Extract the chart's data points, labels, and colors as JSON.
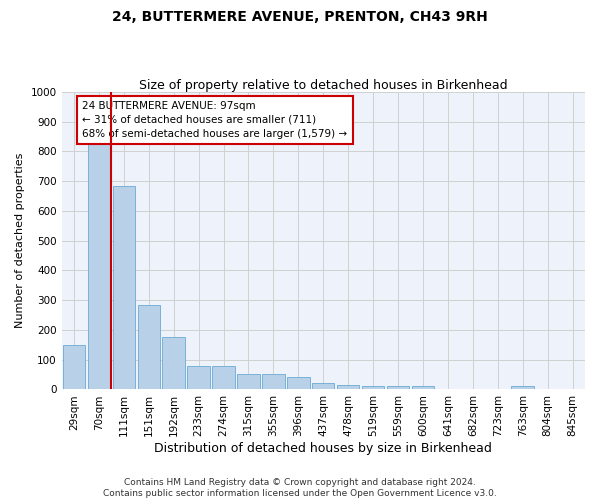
{
  "title": "24, BUTTERMERE AVENUE, PRENTON, CH43 9RH",
  "subtitle": "Size of property relative to detached houses in Birkenhead",
  "xlabel": "Distribution of detached houses by size in Birkenhead",
  "ylabel": "Number of detached properties",
  "categories": [
    "29sqm",
    "70sqm",
    "111sqm",
    "151sqm",
    "192sqm",
    "233sqm",
    "274sqm",
    "315sqm",
    "355sqm",
    "396sqm",
    "437sqm",
    "478sqm",
    "519sqm",
    "559sqm",
    "600sqm",
    "641sqm",
    "682sqm",
    "723sqm",
    "763sqm",
    "804sqm",
    "845sqm"
  ],
  "values": [
    150,
    825,
    685,
    283,
    175,
    80,
    78,
    52,
    52,
    42,
    22,
    14,
    13,
    10,
    10,
    0,
    0,
    0,
    12,
    0,
    0
  ],
  "bar_color": "#b8d0e8",
  "bar_edge_color": "#6aaad4",
  "vline_x_idx": 1.5,
  "annotation_line1": "24 BUTTERMERE AVENUE: 97sqm",
  "annotation_line2": "← 31% of detached houses are smaller (711)",
  "annotation_line3": "68% of semi-detached houses are larger (1,579) →",
  "annotation_box_color": "#ffffff",
  "annotation_box_edge_color": "#cc0000",
  "vline_color": "#cc0000",
  "ylim": [
    0,
    1000
  ],
  "yticks": [
    0,
    100,
    200,
    300,
    400,
    500,
    600,
    700,
    800,
    900,
    1000
  ],
  "grid_color": "#d0d0d0",
  "bg_color": "#eef2fa",
  "footer_line1": "Contains HM Land Registry data © Crown copyright and database right 2024.",
  "footer_line2": "Contains public sector information licensed under the Open Government Licence v3.0.",
  "title_fontsize": 10,
  "subtitle_fontsize": 9,
  "xlabel_fontsize": 9,
  "ylabel_fontsize": 8,
  "tick_fontsize": 7.5,
  "annotation_fontsize": 7.5,
  "footer_fontsize": 6.5
}
